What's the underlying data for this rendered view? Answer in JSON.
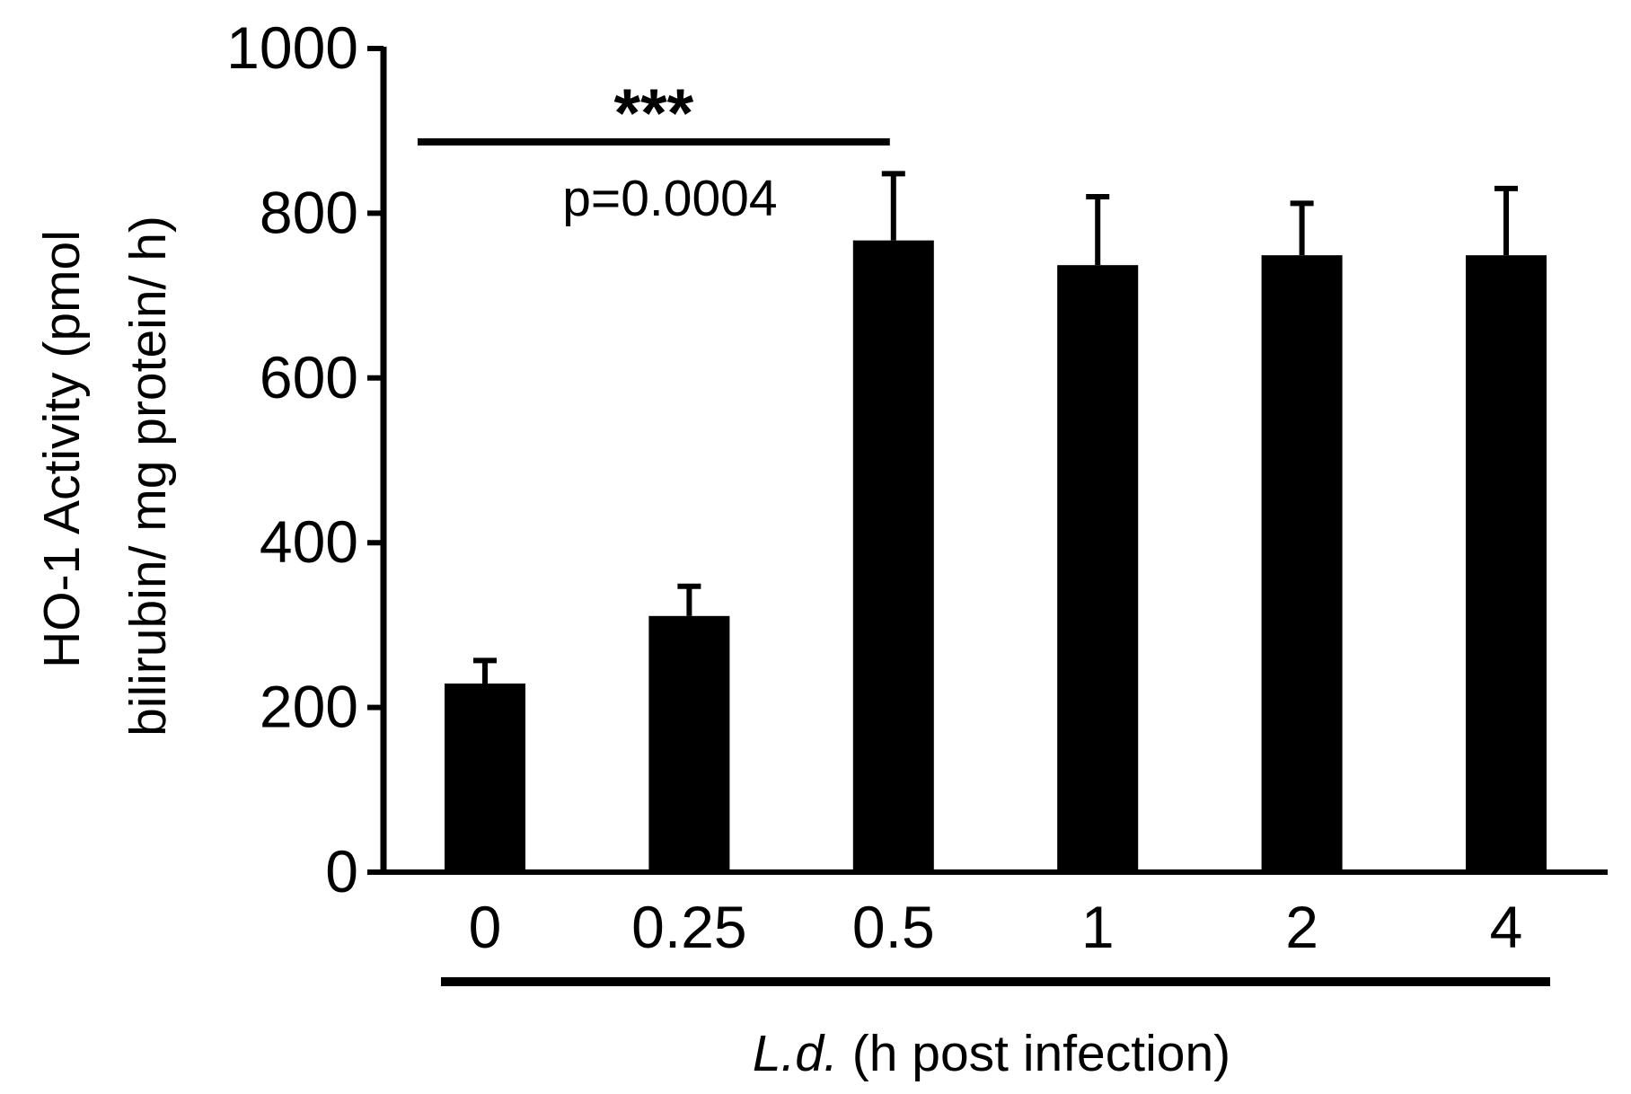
{
  "chart_data": {
    "type": "bar",
    "categories": [
      "0",
      "0.25",
      "0.5",
      "1",
      "2",
      "4"
    ],
    "values": [
      229,
      311,
      767,
      737,
      749,
      749
    ],
    "errors": [
      28,
      36,
      81,
      83,
      63,
      81
    ],
    "title": "",
    "xlabel_italic": "L.d.",
    "xlabel_rest": " (h post infection)",
    "ylabel_line1": "HO-1 Activity (pmol",
    "ylabel_line2": "bilirubin/ mg protein/ h)",
    "ylim": [
      0,
      1000
    ],
    "yticks": [
      0,
      200,
      400,
      600,
      800,
      1000
    ],
    "ytick_labels": [
      "0",
      "200",
      "400",
      "600",
      "800",
      "1000"
    ],
    "significance": {
      "from_category": "0",
      "to_category": "0.5",
      "stars": "***",
      "p_label": "p=0.0004"
    },
    "grid": false,
    "legend": "none",
    "colors": {
      "bar": "#000000",
      "axis": "#000000",
      "background": "#ffffff"
    }
  }
}
